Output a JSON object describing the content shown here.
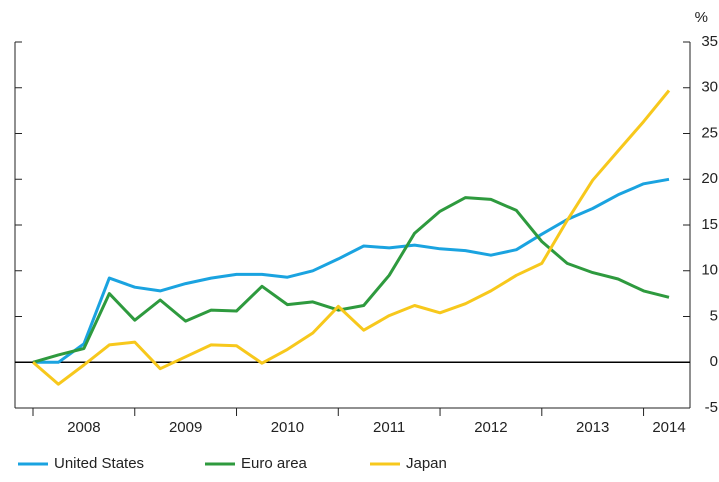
{
  "chart_data": {
    "type": "line",
    "y_unit": "%",
    "categories": [
      null,
      null,
      "2008",
      null,
      null,
      null,
      "2009",
      null,
      null,
      null,
      "2010",
      null,
      null,
      null,
      "2011",
      null,
      null,
      null,
      "2012",
      null,
      null,
      null,
      "2013",
      null,
      null,
      "2014"
    ],
    "series": [
      {
        "name": "United States",
        "color": "#1aa3e0",
        "values": [
          0,
          0,
          2,
          9.2,
          8.2,
          7.8,
          8.6,
          9.2,
          9.6,
          9.6,
          9.3,
          10,
          11.3,
          12.7,
          12.5,
          12.8,
          12.4,
          12.2,
          11.7,
          12.3,
          14,
          15.6,
          16.8,
          18.3,
          19.5,
          20
        ]
      },
      {
        "name": "Euro area",
        "color": "#2e9a3e",
        "values": [
          0,
          0.8,
          1.5,
          7.5,
          4.6,
          6.8,
          4.5,
          5.7,
          5.6,
          8.3,
          6.3,
          6.6,
          5.7,
          6.2,
          9.5,
          14.1,
          16.5,
          18,
          17.8,
          16.6,
          13.2,
          10.8,
          9.8,
          9.1,
          7.8,
          7.1
        ]
      },
      {
        "name": "Japan",
        "color": "#f7c81c",
        "values": [
          0,
          -2.4,
          -0.3,
          1.9,
          2.2,
          -0.7,
          0.6,
          1.9,
          1.8,
          -0.1,
          1.4,
          3.2,
          6.1,
          3.5,
          5.1,
          6.2,
          5.4,
          6.4,
          7.8,
          9.5,
          10.8,
          15.5,
          19.9,
          23.1,
          26.3,
          29.7
        ]
      }
    ],
    "ylim": [
      -5,
      35
    ],
    "yticks": [
      -5,
      0,
      5,
      10,
      15,
      20,
      25,
      30,
      35
    ],
    "grid": false
  }
}
